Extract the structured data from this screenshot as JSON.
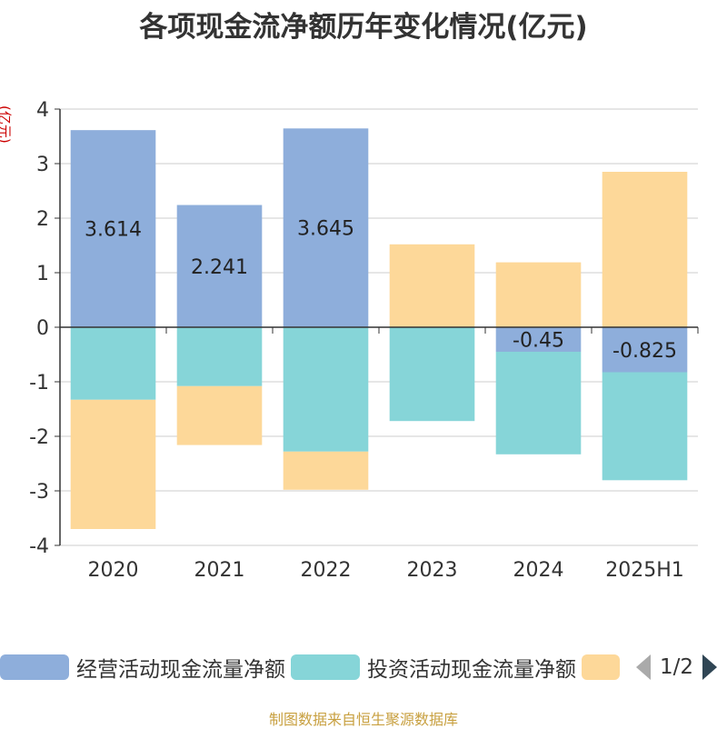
{
  "title": "各项现金流净额历年变化情况(亿元)",
  "y_unit_label": "(亿元)",
  "source_note": "制图数据来自恒生聚源数据库",
  "legend_pager": {
    "text": "1/2"
  },
  "chart_data": {
    "type": "bar",
    "stacked": true,
    "categories": [
      "2020",
      "2021",
      "2022",
      "2023",
      "2024",
      "2025H1"
    ],
    "ylim": [
      -4,
      4
    ],
    "yticks": [
      "4",
      "3",
      "2",
      "1",
      "0",
      "-1",
      "-2",
      "-3",
      "-4"
    ],
    "ytick_values": [
      4,
      3,
      2,
      1,
      0,
      -1,
      -2,
      -3,
      -4
    ],
    "grid": true,
    "legend_position": "bottom",
    "series": [
      {
        "name": "经营活动现金流量净额",
        "color": "#8eaedb",
        "values": [
          3.614,
          2.241,
          3.645,
          0,
          -0.45,
          -0.825
        ],
        "labels": [
          "3.614",
          "2.241",
          "3.645",
          "",
          "-0.45",
          "-0.825"
        ]
      },
      {
        "name": "投资活动现金流量净额",
        "color": "#86d5d8",
        "values": [
          -1.33,
          -1.08,
          -2.28,
          -1.72,
          -1.88,
          -1.98
        ],
        "labels": [
          "",
          "",
          "",
          "",
          "",
          ""
        ]
      },
      {
        "name": "",
        "color": "#fdd899",
        "values": [
          -2.37,
          -1.08,
          -0.7,
          1.52,
          1.19,
          2.85
        ],
        "labels": [
          "",
          "",
          "",
          "",
          "",
          ""
        ]
      }
    ]
  }
}
